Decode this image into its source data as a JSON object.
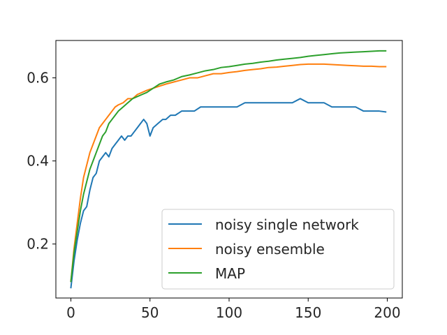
{
  "chart_data": {
    "type": "line",
    "title": "",
    "xlabel": "",
    "ylabel": "",
    "xlim": [
      -9.5,
      209.5
    ],
    "ylim": [
      0.07,
      0.69
    ],
    "xticks": [
      0,
      50,
      100,
      150,
      200
    ],
    "yticks": [
      0.2,
      0.4,
      0.6
    ],
    "grid": false,
    "legend_position": "lower-right",
    "series": [
      {
        "name": "noisy single network",
        "color": "#1f77b4",
        "points": [
          [
            0,
            0.095
          ],
          [
            2,
            0.16
          ],
          [
            4,
            0.21
          ],
          [
            6,
            0.25
          ],
          [
            8,
            0.28
          ],
          [
            10,
            0.29
          ],
          [
            12,
            0.33
          ],
          [
            14,
            0.36
          ],
          [
            16,
            0.37
          ],
          [
            18,
            0.4
          ],
          [
            20,
            0.41
          ],
          [
            22,
            0.42
          ],
          [
            24,
            0.41
          ],
          [
            26,
            0.43
          ],
          [
            28,
            0.44
          ],
          [
            30,
            0.45
          ],
          [
            32,
            0.46
          ],
          [
            34,
            0.45
          ],
          [
            36,
            0.46
          ],
          [
            38,
            0.46
          ],
          [
            40,
            0.47
          ],
          [
            42,
            0.48
          ],
          [
            44,
            0.49
          ],
          [
            46,
            0.5
          ],
          [
            48,
            0.49
          ],
          [
            50,
            0.46
          ],
          [
            52,
            0.48
          ],
          [
            55,
            0.49
          ],
          [
            58,
            0.5
          ],
          [
            60,
            0.5
          ],
          [
            63,
            0.51
          ],
          [
            66,
            0.51
          ],
          [
            70,
            0.52
          ],
          [
            74,
            0.52
          ],
          [
            78,
            0.52
          ],
          [
            82,
            0.53
          ],
          [
            86,
            0.53
          ],
          [
            90,
            0.53
          ],
          [
            95,
            0.53
          ],
          [
            100,
            0.53
          ],
          [
            105,
            0.53
          ],
          [
            110,
            0.54
          ],
          [
            115,
            0.54
          ],
          [
            120,
            0.54
          ],
          [
            125,
            0.54
          ],
          [
            130,
            0.54
          ],
          [
            135,
            0.54
          ],
          [
            140,
            0.54
          ],
          [
            145,
            0.55
          ],
          [
            150,
            0.54
          ],
          [
            155,
            0.54
          ],
          [
            160,
            0.54
          ],
          [
            165,
            0.53
          ],
          [
            170,
            0.53
          ],
          [
            175,
            0.53
          ],
          [
            180,
            0.53
          ],
          [
            185,
            0.52
          ],
          [
            190,
            0.52
          ],
          [
            195,
            0.52
          ],
          [
            199,
            0.518
          ]
        ]
      },
      {
        "name": "noisy ensemble",
        "color": "#ff7f0e",
        "points": [
          [
            0,
            0.11
          ],
          [
            2,
            0.19
          ],
          [
            4,
            0.25
          ],
          [
            6,
            0.31
          ],
          [
            8,
            0.36
          ],
          [
            10,
            0.39
          ],
          [
            12,
            0.42
          ],
          [
            14,
            0.44
          ],
          [
            16,
            0.46
          ],
          [
            18,
            0.48
          ],
          [
            20,
            0.49
          ],
          [
            22,
            0.5
          ],
          [
            24,
            0.51
          ],
          [
            26,
            0.52
          ],
          [
            28,
            0.53
          ],
          [
            30,
            0.535
          ],
          [
            33,
            0.54
          ],
          [
            36,
            0.55
          ],
          [
            39,
            0.55
          ],
          [
            42,
            0.56
          ],
          [
            45,
            0.565
          ],
          [
            48,
            0.57
          ],
          [
            52,
            0.575
          ],
          [
            56,
            0.58
          ],
          [
            60,
            0.585
          ],
          [
            65,
            0.59
          ],
          [
            70,
            0.595
          ],
          [
            75,
            0.6
          ],
          [
            80,
            0.6
          ],
          [
            85,
            0.605
          ],
          [
            90,
            0.61
          ],
          [
            95,
            0.61
          ],
          [
            100,
            0.613
          ],
          [
            105,
            0.615
          ],
          [
            110,
            0.618
          ],
          [
            115,
            0.62
          ],
          [
            120,
            0.622
          ],
          [
            125,
            0.625
          ],
          [
            130,
            0.626
          ],
          [
            135,
            0.628
          ],
          [
            140,
            0.63
          ],
          [
            145,
            0.632
          ],
          [
            150,
            0.633
          ],
          [
            155,
            0.633
          ],
          [
            160,
            0.633
          ],
          [
            165,
            0.632
          ],
          [
            170,
            0.631
          ],
          [
            175,
            0.63
          ],
          [
            180,
            0.629
          ],
          [
            185,
            0.628
          ],
          [
            190,
            0.628
          ],
          [
            195,
            0.627
          ],
          [
            199,
            0.627
          ]
        ]
      },
      {
        "name": "MAP",
        "color": "#2ca02c",
        "points": [
          [
            0,
            0.11
          ],
          [
            2,
            0.18
          ],
          [
            4,
            0.23
          ],
          [
            6,
            0.28
          ],
          [
            8,
            0.32
          ],
          [
            10,
            0.35
          ],
          [
            12,
            0.38
          ],
          [
            14,
            0.4
          ],
          [
            16,
            0.42
          ],
          [
            18,
            0.44
          ],
          [
            20,
            0.46
          ],
          [
            22,
            0.47
          ],
          [
            24,
            0.49
          ],
          [
            26,
            0.5
          ],
          [
            28,
            0.51
          ],
          [
            30,
            0.52
          ],
          [
            33,
            0.53
          ],
          [
            36,
            0.54
          ],
          [
            39,
            0.55
          ],
          [
            42,
            0.555
          ],
          [
            45,
            0.56
          ],
          [
            48,
            0.565
          ],
          [
            52,
            0.575
          ],
          [
            56,
            0.585
          ],
          [
            60,
            0.59
          ],
          [
            65,
            0.595
          ],
          [
            70,
            0.603
          ],
          [
            75,
            0.607
          ],
          [
            80,
            0.612
          ],
          [
            85,
            0.617
          ],
          [
            90,
            0.62
          ],
          [
            95,
            0.625
          ],
          [
            100,
            0.627
          ],
          [
            105,
            0.63
          ],
          [
            110,
            0.633
          ],
          [
            115,
            0.635
          ],
          [
            120,
            0.638
          ],
          [
            125,
            0.64
          ],
          [
            130,
            0.643
          ],
          [
            135,
            0.645
          ],
          [
            140,
            0.647
          ],
          [
            145,
            0.649
          ],
          [
            150,
            0.652
          ],
          [
            155,
            0.654
          ],
          [
            160,
            0.656
          ],
          [
            165,
            0.658
          ],
          [
            170,
            0.66
          ],
          [
            175,
            0.661
          ],
          [
            180,
            0.662
          ],
          [
            185,
            0.663
          ],
          [
            190,
            0.664
          ],
          [
            195,
            0.665
          ],
          [
            199,
            0.665
          ]
        ]
      }
    ]
  }
}
